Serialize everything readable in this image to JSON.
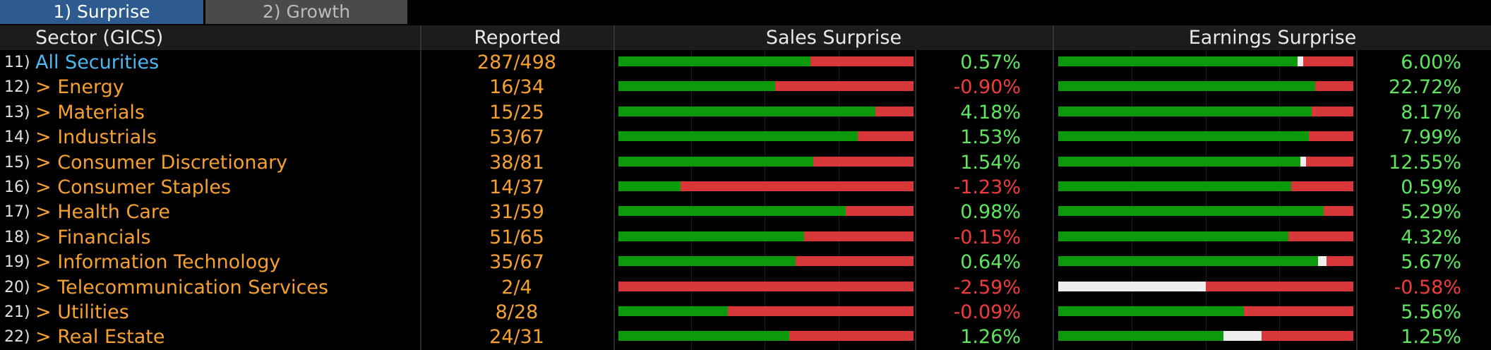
{
  "tabs": [
    "1) Surprise",
    "2) Growth"
  ],
  "columns": [
    "Sector (GICS)",
    "Reported",
    "Sales Surprise",
    "Earnings Surprise"
  ],
  "rows": [
    {
      "num": "11)",
      "sector": "All Securities",
      "reported": "287/498",
      "sales_split": [
        65,
        0,
        35
      ],
      "sales_surprise": "0.57%",
      "earnings_split": [
        81,
        2,
        17
      ],
      "earnings_surprise": "6.00%"
    },
    {
      "num": "12)",
      "sector": "Energy",
      "reported": "16/34",
      "sales_split": [
        53,
        0,
        47
      ],
      "sales_surprise": "-0.90%",
      "earnings_split": [
        87,
        0,
        13
      ],
      "earnings_surprise": "22.72%"
    },
    {
      "num": "13)",
      "sector": "Materials",
      "reported": "15/25",
      "sales_split": [
        87,
        0,
        13
      ],
      "sales_surprise": "4.18%",
      "earnings_split": [
        86,
        0,
        14
      ],
      "earnings_surprise": "8.17%"
    },
    {
      "num": "14)",
      "sector": "Industrials",
      "reported": "53/67",
      "sales_split": [
        81,
        0,
        19
      ],
      "sales_surprise": "1.53%",
      "earnings_split": [
        85,
        0,
        15
      ],
      "earnings_surprise": "7.99%"
    },
    {
      "num": "15)",
      "sector": "Consumer Discretionary",
      "reported": "38/81",
      "sales_split": [
        66,
        0,
        34
      ],
      "sales_surprise": "1.54%",
      "earnings_split": [
        82,
        2,
        16
      ],
      "earnings_surprise": "12.55%"
    },
    {
      "num": "16)",
      "sector": "Consumer Staples",
      "reported": "14/37",
      "sales_split": [
        21,
        0,
        79
      ],
      "sales_surprise": "-1.23%",
      "earnings_split": [
        79,
        0,
        21
      ],
      "earnings_surprise": "0.59%"
    },
    {
      "num": "17)",
      "sector": "Health Care",
      "reported": "31/59",
      "sales_split": [
        77,
        0,
        23
      ],
      "sales_surprise": "0.98%",
      "earnings_split": [
        90,
        0,
        10
      ],
      "earnings_surprise": "5.29%"
    },
    {
      "num": "18)",
      "sector": "Financials",
      "reported": "51/65",
      "sales_split": [
        63,
        0,
        37
      ],
      "sales_surprise": "-0.15%",
      "earnings_split": [
        78,
        0,
        22
      ],
      "earnings_surprise": "4.32%"
    },
    {
      "num": "19)",
      "sector": "Information Technology",
      "reported": "35/67",
      "sales_split": [
        60,
        0,
        40
      ],
      "sales_surprise": "0.64%",
      "earnings_split": [
        88,
        3,
        9
      ],
      "earnings_surprise": "5.67%"
    },
    {
      "num": "20)",
      "sector": "Telecommunication Services",
      "reported": "2/4",
      "sales_split": [
        0,
        0,
        100
      ],
      "sales_surprise": "-2.59%",
      "earnings_split": [
        0,
        50,
        50
      ],
      "earnings_surprise": "-0.58%"
    },
    {
      "num": "21)",
      "sector": "Utilities",
      "reported": "8/28",
      "sales_split": [
        37,
        0,
        63
      ],
      "sales_surprise": "-0.09%",
      "earnings_split": [
        63,
        0,
        37
      ],
      "earnings_surprise": "5.56%"
    },
    {
      "num": "22)",
      "sector": "Real Estate",
      "reported": "24/31",
      "sales_split": [
        58,
        0,
        42
      ],
      "sales_surprise": "1.26%",
      "earnings_split": [
        56,
        13,
        31
      ],
      "earnings_surprise": "1.25%"
    }
  ]
}
